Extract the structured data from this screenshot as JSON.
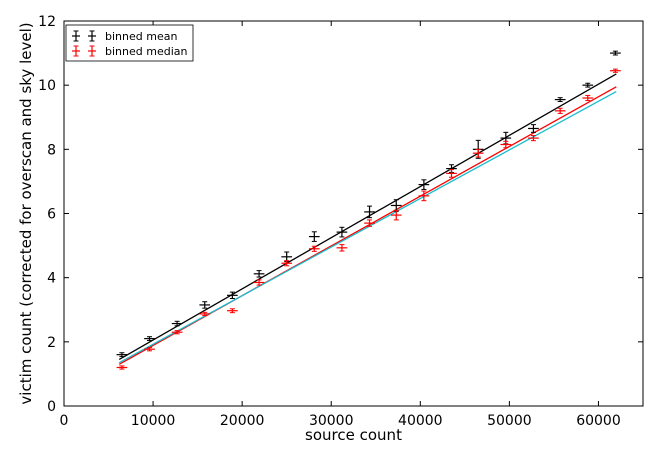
{
  "chart_data": {
    "type": "scatter",
    "xlabel": "source count",
    "ylabel": "victim count (corrected for overscan and sky level)",
    "xlim": [
      0,
      65000
    ],
    "ylim": [
      0,
      12
    ],
    "xticks": [
      0,
      10000,
      20000,
      30000,
      40000,
      50000,
      60000
    ],
    "yticks": [
      0,
      2,
      4,
      6,
      8,
      10,
      12
    ],
    "grid": false,
    "legend_position": "top-left",
    "series": [
      {
        "name": "binned mean",
        "color": "#000000",
        "points": [
          {
            "x": 6500,
            "y": 1.6,
            "xerr": 600,
            "yerr": 0.06
          },
          {
            "x": 9600,
            "y": 2.1,
            "xerr": 600,
            "yerr": 0.06
          },
          {
            "x": 12700,
            "y": 2.57,
            "xerr": 600,
            "yerr": 0.07
          },
          {
            "x": 15800,
            "y": 3.15,
            "xerr": 600,
            "yerr": 0.1
          },
          {
            "x": 18900,
            "y": 3.45,
            "xerr": 600,
            "yerr": 0.1
          },
          {
            "x": 21900,
            "y": 4.12,
            "xerr": 600,
            "yerr": 0.1
          },
          {
            "x": 25000,
            "y": 4.65,
            "xerr": 600,
            "yerr": 0.15
          },
          {
            "x": 28100,
            "y": 5.28,
            "xerr": 600,
            "yerr": 0.15
          },
          {
            "x": 31200,
            "y": 5.42,
            "xerr": 600,
            "yerr": 0.15
          },
          {
            "x": 34300,
            "y": 6.05,
            "xerr": 600,
            "yerr": 0.18
          },
          {
            "x": 37300,
            "y": 6.25,
            "xerr": 600,
            "yerr": 0.18
          },
          {
            "x": 40400,
            "y": 6.9,
            "xerr": 600,
            "yerr": 0.15
          },
          {
            "x": 43500,
            "y": 7.4,
            "xerr": 600,
            "yerr": 0.12
          },
          {
            "x": 46500,
            "y": 8.0,
            "xerr": 600,
            "yerr": 0.28
          },
          {
            "x": 49600,
            "y": 8.35,
            "xerr": 600,
            "yerr": 0.18
          },
          {
            "x": 52700,
            "y": 8.65,
            "xerr": 600,
            "yerr": 0.12
          },
          {
            "x": 55700,
            "y": 9.55,
            "xerr": 600,
            "yerr": 0.06
          },
          {
            "x": 58800,
            "y": 10.0,
            "xerr": 600,
            "yerr": 0.06
          },
          {
            "x": 61900,
            "y": 11.0,
            "xerr": 600,
            "yerr": 0.06
          }
        ]
      },
      {
        "name": "binned median",
        "color": "#ff0000",
        "points": [
          {
            "x": 6500,
            "y": 1.2,
            "xerr": 600,
            "yerr": 0.05
          },
          {
            "x": 9600,
            "y": 1.77,
            "xerr": 600,
            "yerr": 0.05
          },
          {
            "x": 12700,
            "y": 2.3,
            "xerr": 600,
            "yerr": 0.05
          },
          {
            "x": 15800,
            "y": 2.87,
            "xerr": 600,
            "yerr": 0.05
          },
          {
            "x": 18900,
            "y": 2.97,
            "xerr": 600,
            "yerr": 0.06
          },
          {
            "x": 21900,
            "y": 3.85,
            "xerr": 600,
            "yerr": 0.08
          },
          {
            "x": 25000,
            "y": 4.45,
            "xerr": 600,
            "yerr": 0.08
          },
          {
            "x": 28100,
            "y": 4.9,
            "xerr": 600,
            "yerr": 0.08
          },
          {
            "x": 31200,
            "y": 4.93,
            "xerr": 600,
            "yerr": 0.1
          },
          {
            "x": 34300,
            "y": 5.7,
            "xerr": 600,
            "yerr": 0.1
          },
          {
            "x": 37300,
            "y": 5.95,
            "xerr": 600,
            "yerr": 0.15
          },
          {
            "x": 40400,
            "y": 6.55,
            "xerr": 600,
            "yerr": 0.15
          },
          {
            "x": 43500,
            "y": 7.25,
            "xerr": 600,
            "yerr": 0.12
          },
          {
            "x": 46500,
            "y": 7.88,
            "xerr": 600,
            "yerr": 0.12
          },
          {
            "x": 49600,
            "y": 8.15,
            "xerr": 600,
            "yerr": 0.1
          },
          {
            "x": 52700,
            "y": 8.35,
            "xerr": 600,
            "yerr": 0.08
          },
          {
            "x": 55700,
            "y": 9.2,
            "xerr": 600,
            "yerr": 0.08
          },
          {
            "x": 58800,
            "y": 9.6,
            "xerr": 600,
            "yerr": 0.08
          },
          {
            "x": 61900,
            "y": 10.45,
            "xerr": 600,
            "yerr": 0.05
          }
        ]
      }
    ],
    "fit_lines": [
      {
        "color": "#000000",
        "x": [
          6200,
          62000
        ],
        "y": [
          1.45,
          10.35
        ]
      },
      {
        "color": "#ff0000",
        "x": [
          6200,
          62000
        ],
        "y": [
          1.3,
          9.95
        ]
      },
      {
        "color": "#17becf",
        "x": [
          6200,
          62000
        ],
        "y": [
          1.35,
          9.8
        ]
      }
    ]
  }
}
